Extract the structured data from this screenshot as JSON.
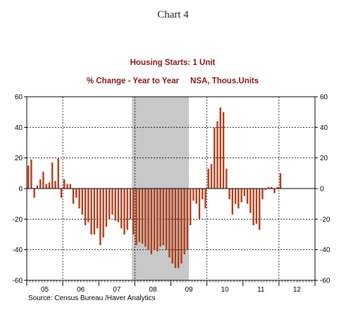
{
  "caption": "Chart 4",
  "chart_data": {
    "type": "bar",
    "title": "Housing Starts: 1 Unit",
    "subtitle": "% Change - Year to Year     NSA, Thous.Units",
    "source": "Source:  Census Bureau /Haver Analytics",
    "ylim": [
      -60,
      60
    ],
    "yticks": [
      -60,
      -40,
      -20,
      0,
      20,
      40,
      60
    ],
    "ytick_labels": [
      "-60",
      "-40",
      "-20",
      "0",
      "20",
      "40",
      "60"
    ],
    "x_start": "2005-01",
    "x_end": "2012-12",
    "year_labels": [
      "05",
      "06",
      "07",
      "08",
      "09",
      "10",
      "11",
      "12"
    ],
    "recession_shade": {
      "start": "2007-12",
      "end": "2009-06",
      "color": "#c8c8c8"
    },
    "bar_color": "#b03a14",
    "grid": "dotted, years and y ticks",
    "series": [
      {
        "start": "2005-01",
        "values": [
          15,
          19,
          -6,
          2,
          6,
          11,
          3,
          4,
          17,
          5,
          20,
          -6,
          6,
          3,
          3,
          -10,
          -6,
          -13,
          -17,
          -24,
          -22,
          -30,
          -30,
          -26,
          -37,
          -32,
          -25,
          -20,
          -17,
          -21,
          -22,
          -26,
          -30,
          -27,
          -20,
          -30,
          -37,
          -35,
          -36,
          -38,
          -40,
          -43,
          -40,
          -41,
          -38,
          -37,
          -40,
          -45,
          -49,
          -52,
          -52,
          -49,
          -43,
          -40,
          -24,
          -8,
          -10,
          -20,
          -7,
          -13,
          13,
          16,
          40,
          44,
          53,
          50,
          13,
          -7,
          -17,
          -10,
          -13,
          -9,
          -5,
          -10,
          -16,
          -24,
          -23,
          -27,
          -7,
          -1,
          1,
          1,
          -3,
          1,
          10
        ]
      }
    ]
  }
}
